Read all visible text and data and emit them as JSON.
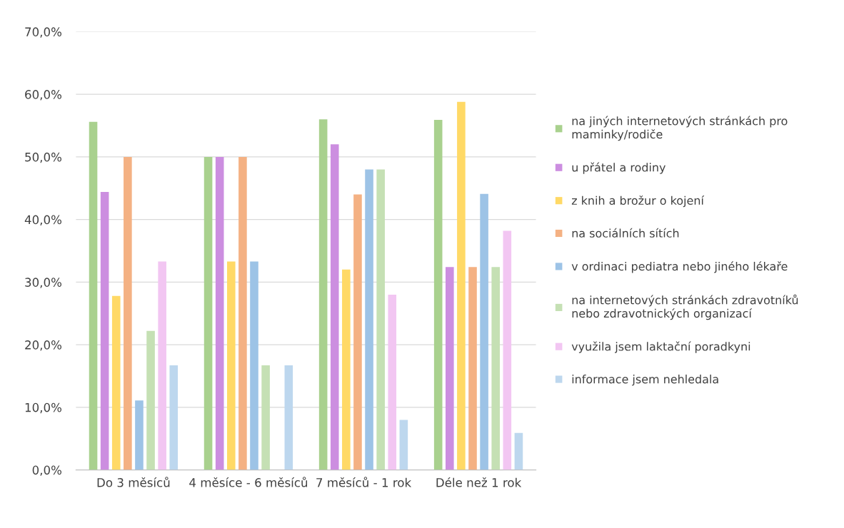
{
  "chart_data": {
    "type": "bar",
    "categories": [
      "Do 3 měsíců",
      "4 měsíce - 6 měsíců",
      "7 měsíců - 1 rok",
      "Déle než 1 rok"
    ],
    "series": [
      {
        "name": "na jiných internetových stránkách pro maminky/rodiče",
        "color": "#a9d18e",
        "values": [
          55.6,
          50.0,
          56.0,
          55.9
        ]
      },
      {
        "name": "u přátel a rodiny",
        "color": "#cc8ee0",
        "values": [
          44.4,
          50.0,
          52.0,
          32.4
        ]
      },
      {
        "name": "z knih a brožur o kojení",
        "color": "#ffd966",
        "values": [
          27.8,
          33.3,
          32.0,
          58.8
        ]
      },
      {
        "name": "na sociálních sítích",
        "color": "#f4b183",
        "values": [
          50.0,
          50.0,
          44.0,
          32.4
        ]
      },
      {
        "name": "v ordinaci pediatra nebo jiného lékaře",
        "color": "#9dc3e6",
        "values": [
          11.1,
          33.3,
          48.0,
          44.1
        ]
      },
      {
        "name": "na internetových stránkách zdravotníků nebo zdravotnických organizací",
        "color": "#c5e0b4",
        "values": [
          22.2,
          16.7,
          48.0,
          32.4
        ]
      },
      {
        "name": "využila jsem laktační poradkyni",
        "color": "#f2c6f2",
        "values": [
          33.3,
          0.0,
          28.0,
          38.2
        ]
      },
      {
        "name": "informace jsem nehledala",
        "color": "#bdd7ee",
        "values": [
          16.7,
          16.7,
          8.0,
          5.9
        ]
      }
    ],
    "ylim": [
      0,
      70
    ],
    "yticks": [
      {
        "value": 0,
        "label": "0,0%"
      },
      {
        "value": 10,
        "label": "10,0%"
      },
      {
        "value": 20,
        "label": "20,0%"
      },
      {
        "value": 30,
        "label": "30,0%"
      },
      {
        "value": 40,
        "label": "40,0%"
      },
      {
        "value": 50,
        "label": "50,0%"
      },
      {
        "value": 60,
        "label": "60,0%"
      },
      {
        "value": 70,
        "label": "70,0%"
      }
    ],
    "grid": "y",
    "legend": "right"
  }
}
